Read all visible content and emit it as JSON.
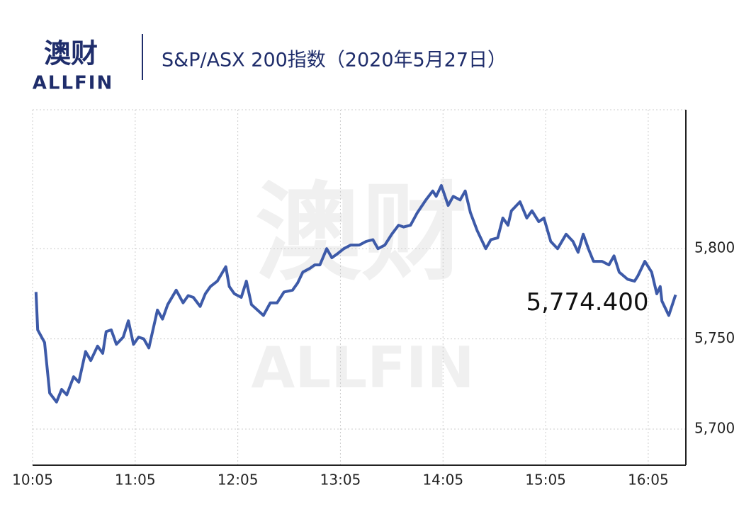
{
  "logo": {
    "name": "澳财",
    "sub": "ALLFIN"
  },
  "chart_data": {
    "type": "line",
    "title": "S&P/ASX 200指数（2020年5月27日）",
    "x": [
      "10:07",
      "10:08",
      "10:12",
      "10:15",
      "10:19",
      "10:22",
      "10:25",
      "10:29",
      "10:32",
      "10:36",
      "10:39",
      "10:43",
      "10:46",
      "10:48",
      "10:51",
      "10:54",
      "10:58",
      "11:01",
      "11:04",
      "11:07",
      "11:10",
      "11:13",
      "11:18",
      "11:21",
      "11:24",
      "11:29",
      "11:33",
      "11:36",
      "11:39",
      "11:43",
      "11:46",
      "11:49",
      "11:53",
      "11:58",
      "12:00",
      "12:03",
      "12:07",
      "12:10",
      "12:13",
      "12:20",
      "12:24",
      "12:28",
      "12:32",
      "12:37",
      "12:40",
      "12:43",
      "12:47",
      "12:50",
      "12:53",
      "12:57",
      "13:00",
      "13:03",
      "13:07",
      "13:11",
      "13:16",
      "13:20",
      "13:24",
      "13:27",
      "13:31",
      "13:35",
      "13:39",
      "13:42",
      "13:46",
      "13:50",
      "13:55",
      "13:59",
      "14:01",
      "14:04",
      "14:08",
      "14:11",
      "14:15",
      "14:18",
      "14:21",
      "14:25",
      "14:30",
      "14:33",
      "14:37",
      "14:40",
      "14:43",
      "14:45",
      "14:50",
      "14:54",
      "14:57",
      "15:01",
      "15:04",
      "15:08",
      "15:12",
      "15:17",
      "15:21",
      "15:24",
      "15:27",
      "15:30",
      "15:33",
      "15:38",
      "15:42",
      "15:45",
      "15:48",
      "15:53",
      "15:57",
      "15:59",
      "16:03",
      "16:07",
      "16:10",
      "16:12",
      "16:13",
      "16:17",
      "16:21"
    ],
    "series": [
      {
        "name": "S&P/ASX 200",
        "color": "#3d5aa8",
        "values": [
          5776,
          5755,
          5748,
          5720,
          5715,
          5722,
          5719,
          5729,
          5726,
          5743,
          5738,
          5746,
          5742,
          5754,
          5755,
          5747,
          5751,
          5760,
          5747,
          5751,
          5750,
          5745,
          5766,
          5761,
          5769,
          5777,
          5770,
          5774,
          5773,
          5768,
          5775,
          5779,
          5782,
          5790,
          5779,
          5775,
          5773,
          5782,
          5769,
          5763,
          5770,
          5770,
          5776,
          5777,
          5781,
          5787,
          5789,
          5791,
          5791,
          5800,
          5795,
          5797,
          5800,
          5802,
          5802,
          5804,
          5805,
          5800,
          5802,
          5808,
          5813,
          5812,
          5813,
          5820,
          5827,
          5832,
          5829,
          5835,
          5824,
          5829,
          5827,
          5832,
          5820,
          5810,
          5800,
          5805,
          5806,
          5817,
          5813,
          5821,
          5826,
          5817,
          5821,
          5815,
          5817,
          5804,
          5800,
          5808,
          5804,
          5798,
          5808,
          5800,
          5793,
          5793,
          5791,
          5796,
          5787,
          5783,
          5782,
          5785,
          5793,
          5787,
          5775,
          5779,
          5771,
          5763,
          5774.4
        ]
      }
    ],
    "annotation": "5,774.400",
    "xlim": [
      "10:05",
      "16:27"
    ],
    "xticks": [
      "10:05",
      "11:05",
      "12:05",
      "13:05",
      "14:05",
      "15:05",
      "16:05"
    ],
    "ylim": [
      5680,
      5877
    ],
    "yticks": [
      {
        "value": 5700,
        "label": "5,700"
      },
      {
        "value": 5750,
        "label": "5,750"
      },
      {
        "value": 5800,
        "label": "5,800"
      }
    ],
    "y_axis_side": "right",
    "grid": true
  }
}
